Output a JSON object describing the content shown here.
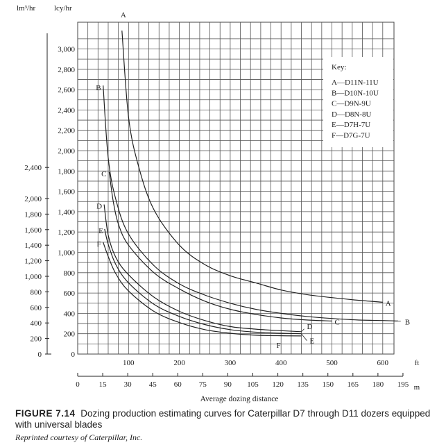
{
  "chart_data": {
    "type": "line",
    "title": "Dozing production estimating curves for Caterpillar D7 through D11 dozers equipped with universal blades",
    "xlabel": "Average dozing distance",
    "x_units": {
      "primary": "ft",
      "secondary": "m"
    },
    "y_units": {
      "left": "lm³/hr",
      "right": "lcy/hr"
    },
    "xlim_ft": [
      0,
      610
    ],
    "ylim_lcy": [
      0,
      3150
    ],
    "x_ticks_ft": [
      "100",
      "200",
      "300",
      "400",
      "500",
      "600"
    ],
    "x_ticks_m": [
      "0",
      "15",
      "30",
      "45",
      "60",
      "75",
      "90",
      "105",
      "120",
      "135",
      "150",
      "165",
      "180",
      "195"
    ],
    "y_ticks_lcy": [
      "0",
      "200",
      "400",
      "600",
      "800",
      "1,000",
      "1,200",
      "1,400",
      "1,600",
      "1,800",
      "2,000",
      "2,200",
      "2,400",
      "2,600",
      "2,800",
      "3,000"
    ],
    "y_ticks_lm3": [
      "0",
      "200",
      "400",
      "600",
      "800",
      "1,000",
      "1,200",
      "1,400",
      "1,600",
      "1,800",
      "2,000",
      "2,400"
    ],
    "key_title": "Key:",
    "key": [
      "A—D11N-11U",
      "B—D10N-10U",
      "C—D9N-9U",
      "D—D8N-8U",
      "E—D7H-7U",
      "F—D7G-7U"
    ],
    "series": [
      {
        "name": "A",
        "x": [
          87,
          100,
          120,
          150,
          200,
          250,
          300,
          350,
          400,
          450,
          500,
          550,
          600
        ],
        "y": [
          3180,
          2330,
          1840,
          1420,
          1070,
          880,
          770,
          700,
          630,
          585,
          555,
          530,
          510
        ]
      },
      {
        "name": "B",
        "x": [
          50,
          60,
          75,
          100,
          150,
          200,
          250,
          300,
          350,
          400,
          450,
          500,
          550,
          600,
          630
        ],
        "y": [
          2640,
          1930,
          1520,
          1180,
          870,
          690,
          580,
          500,
          440,
          400,
          370,
          350,
          335,
          330,
          325
        ]
      },
      {
        "name": "C",
        "x": [
          62,
          70,
          80,
          100,
          150,
          200,
          250,
          300,
          350,
          400,
          450,
          500
        ],
        "y": [
          1790,
          1500,
          1280,
          1070,
          800,
          640,
          520,
          440,
          390,
          355,
          335,
          325
        ]
      },
      {
        "name": "D",
        "x": [
          52,
          60,
          75,
          100,
          150,
          200,
          250,
          300,
          350,
          400,
          440
        ],
        "y": [
          1470,
          1170,
          950,
          780,
          560,
          420,
          330,
          270,
          245,
          230,
          220
        ]
      },
      {
        "name": "E",
        "x": [
          53,
          60,
          75,
          100,
          150,
          200,
          250,
          300,
          350,
          400,
          440
        ],
        "y": [
          1230,
          1080,
          880,
          700,
          490,
          370,
          290,
          240,
          215,
          205,
          200
        ]
      },
      {
        "name": "F",
        "x": [
          50,
          60,
          75,
          100,
          150,
          200,
          250,
          300,
          350,
          400,
          440
        ],
        "y": [
          1100,
          960,
          790,
          620,
          420,
          310,
          240,
          205,
          185,
          180,
          178
        ]
      }
    ]
  },
  "caption": {
    "figure_label": "FIGURE 7.14",
    "text": "Dozing production estimating curves for Caterpillar D7 through D11 dozers equipped with universal blades",
    "credit": "Reprinted courtesy of Caterpillar, Inc."
  }
}
